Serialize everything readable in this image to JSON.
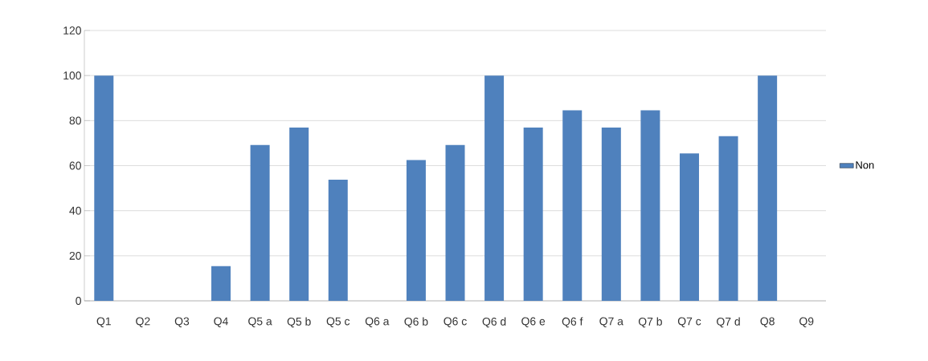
{
  "chart_data": {
    "type": "bar",
    "categories": [
      "Q1",
      "Q2",
      "Q3",
      "Q4",
      "Q5 a",
      "Q5 b",
      "Q5 c",
      "Q6 a",
      "Q6 b",
      "Q6 c",
      "Q6 d",
      "Q6 e",
      "Q6 f",
      "Q7 a",
      "Q7 b",
      "Q7 c",
      "Q7 d",
      "Q8",
      "Q9"
    ],
    "series": [
      {
        "name": "Non",
        "color": "#4f81bd",
        "values": [
          100,
          0,
          0,
          15.4,
          69.2,
          76.9,
          53.8,
          0,
          62.5,
          69.2,
          100,
          76.9,
          84.6,
          76.9,
          84.6,
          65.4,
          73.1,
          100,
          0
        ]
      }
    ],
    "ylim": [
      0,
      120
    ],
    "yticks": [
      0,
      20,
      40,
      60,
      80,
      100,
      120
    ],
    "grid": "y",
    "legend": "right"
  }
}
